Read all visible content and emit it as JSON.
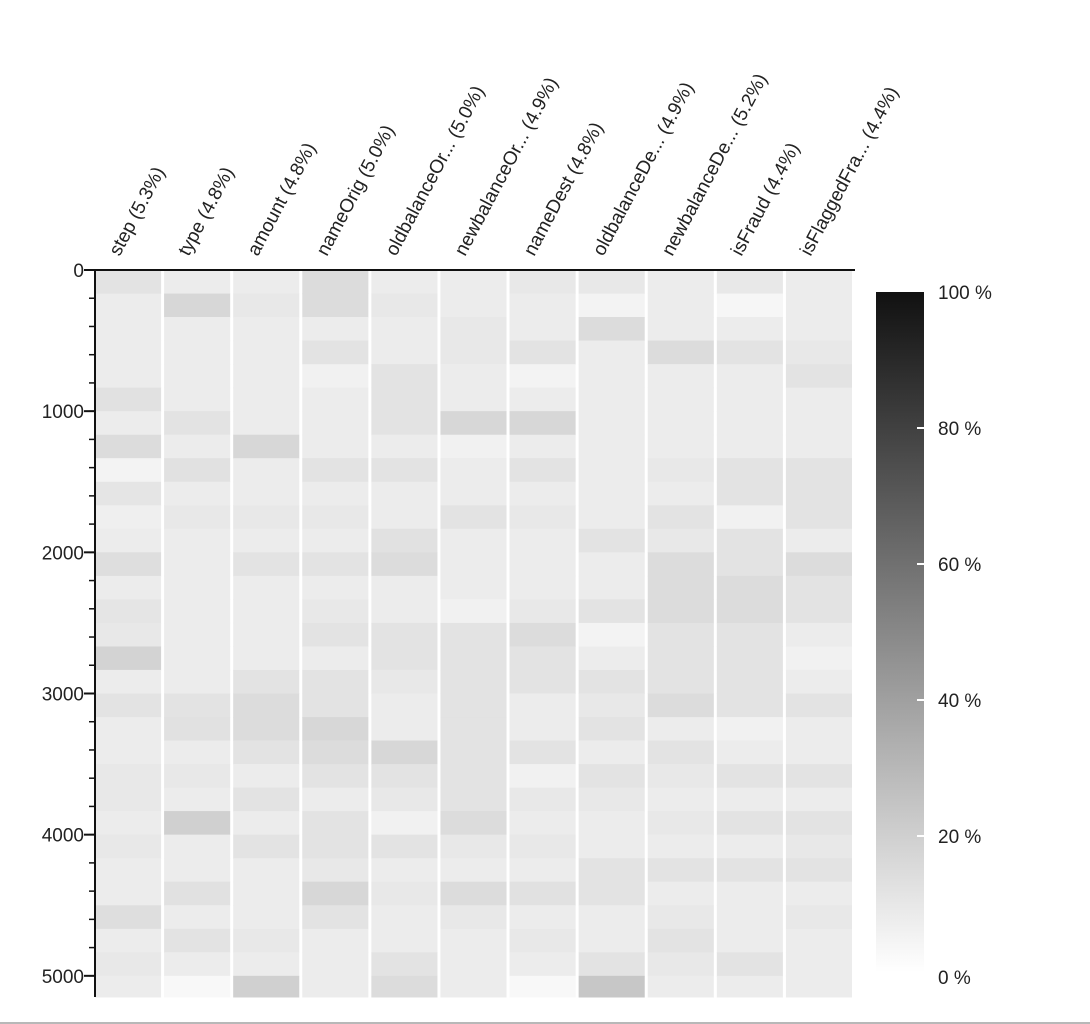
{
  "chart_data": {
    "type": "heatmap",
    "title": "",
    "xlabel": "",
    "ylabel": "",
    "columns": [
      "step (5.3%)",
      "type (4.8%)",
      "amount (4.8%)",
      "nameOrig (5.0%)",
      "oldbalanceOr... (5.0%)",
      "newbalanceOr... (4.9%)",
      "nameDest (4.8%)",
      "oldbalanceDe... (4.9%)",
      "newbalanceDe... (5.2%)",
      "isFraud (4.4%)",
      "isFlaggedFra... (4.4%)"
    ],
    "y_axis": {
      "range": [
        0,
        5150
      ],
      "major_ticks": [
        0,
        1000,
        2000,
        3000,
        4000,
        5000
      ],
      "minor_step": 200
    },
    "row_bins": [
      0,
      167,
      333,
      500,
      667,
      833,
      1000,
      1167,
      1333,
      1500,
      1667,
      1833,
      2000,
      2167,
      2333,
      2500,
      2667,
      2833,
      3000,
      3167,
      3333,
      3500,
      3667,
      3833,
      4000,
      4167,
      4333,
      4500,
      4667,
      4833,
      5000,
      5150
    ],
    "values_percent": [
      [
        9,
        5,
        5,
        5,
        5,
        10,
        5,
        12,
        2,
        8,
        4,
        5,
        11,
        5,
        8,
        7,
        16,
        5,
        9,
        5,
        5,
        7,
        7,
        5,
        7,
        5,
        5,
        11,
        5,
        7,
        5
      ],
      [
        5,
        14,
        5,
        5,
        5,
        5,
        9,
        5,
        10,
        5,
        7,
        5,
        5,
        5,
        5,
        5,
        5,
        5,
        9,
        10,
        5,
        7,
        5,
        17,
        5,
        5,
        10,
        5,
        9,
        5,
        0
      ],
      [
        5,
        7,
        5,
        5,
        5,
        5,
        5,
        14,
        5,
        5,
        7,
        5,
        9,
        5,
        5,
        5,
        5,
        9,
        12,
        12,
        9,
        5,
        9,
        5,
        9,
        5,
        5,
        5,
        7,
        5,
        17
      ],
      [
        12,
        12,
        5,
        9,
        3,
        5,
        5,
        5,
        9,
        5,
        7,
        5,
        9,
        5,
        7,
        9,
        5,
        9,
        9,
        14,
        12,
        9,
        5,
        9,
        9,
        7,
        14,
        9,
        5,
        5,
        5
      ],
      [
        5,
        7,
        5,
        5,
        9,
        9,
        9,
        5,
        9,
        5,
        5,
        10,
        12,
        5,
        5,
        9,
        9,
        7,
        5,
        5,
        14,
        9,
        7,
        3,
        9,
        5,
        7,
        5,
        5,
        9,
        12
      ],
      [
        5,
        5,
        7,
        7,
        5,
        5,
        14,
        3,
        5,
        5,
        9,
        5,
        5,
        5,
        3,
        9,
        9,
        9,
        9,
        9,
        9,
        9,
        9,
        12,
        7,
        5,
        12,
        7,
        5,
        5,
        5
      ],
      [
        7,
        5,
        5,
        9,
        2,
        5,
        14,
        5,
        9,
        5,
        7,
        5,
        5,
        5,
        7,
        12,
        9,
        9,
        5,
        5,
        9,
        3,
        7,
        5,
        7,
        5,
        10,
        5,
        7,
        5,
        0
      ],
      [
        7,
        2,
        12,
        5,
        5,
        5,
        5,
        5,
        5,
        5,
        5,
        9,
        5,
        5,
        9,
        2,
        5,
        9,
        7,
        9,
        5,
        9,
        7,
        5,
        5,
        9,
        9,
        5,
        5,
        9,
        21
      ],
      [
        5,
        5,
        5,
        12,
        5,
        5,
        5,
        5,
        7,
        5,
        9,
        7,
        12,
        12,
        12,
        9,
        9,
        9,
        12,
        5,
        9,
        7,
        5,
        7,
        5,
        9,
        5,
        7,
        9,
        7,
        5
      ],
      [
        7,
        1,
        5,
        9,
        5,
        5,
        5,
        5,
        9,
        9,
        3,
        9,
        9,
        12,
        12,
        9,
        9,
        9,
        9,
        3,
        5,
        9,
        5,
        9,
        5,
        9,
        5,
        5,
        5,
        9,
        5
      ],
      [
        5,
        5,
        5,
        7,
        9,
        5,
        5,
        5,
        9,
        9,
        9,
        5,
        12,
        9,
        9,
        5,
        3,
        5,
        9,
        5,
        5,
        9,
        5,
        9,
        7,
        9,
        5,
        7,
        5,
        5,
        5
      ]
    ],
    "colorbar": {
      "ticks": [
        100,
        80,
        60,
        40,
        20,
        0
      ],
      "tick_labels": [
        "100 %",
        "80 %",
        "60 %",
        "40 %",
        "20 %",
        "0 %"
      ]
    }
  }
}
